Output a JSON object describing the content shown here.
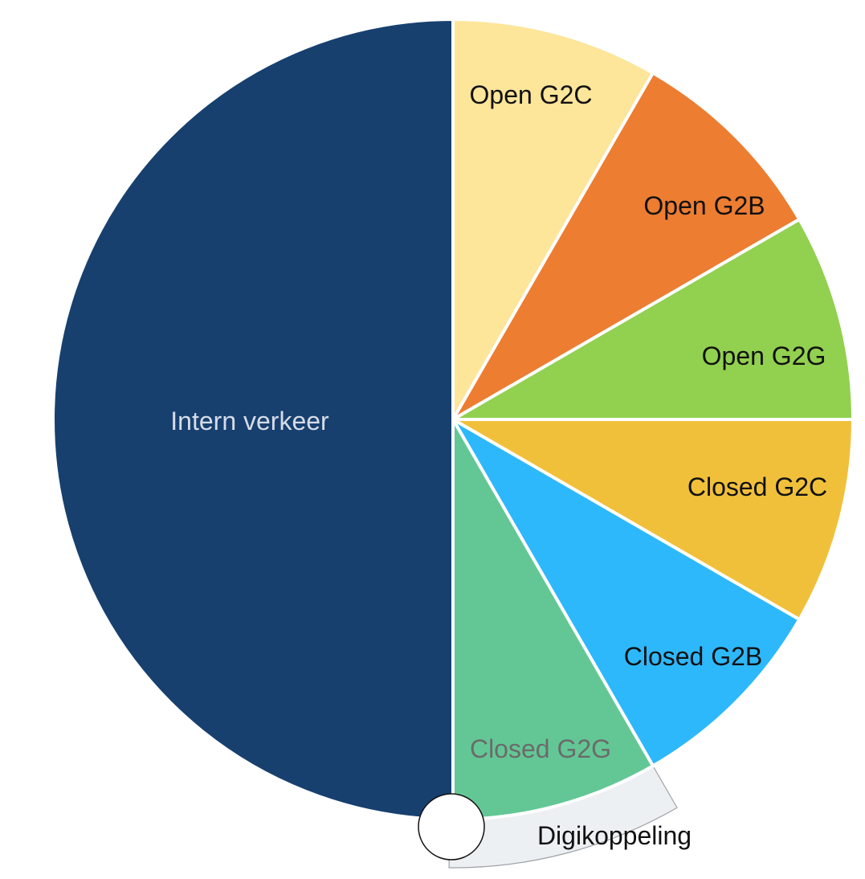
{
  "chart_data": {
    "type": "pie",
    "title": "",
    "start_angle_deg": 0,
    "direction": "clockwise",
    "slices": [
      {
        "label": "Open G2C",
        "value": 1,
        "color": "#FDE59A",
        "label_color": "#111111"
      },
      {
        "label": "Open G2B",
        "value": 1,
        "color": "#ED7D31",
        "label_color": "#111111"
      },
      {
        "label": "Open G2G",
        "value": 1,
        "color": "#92D050",
        "label_color": "#111111"
      },
      {
        "label": "Closed G2C",
        "value": 1,
        "color": "#F1C03A",
        "label_color": "#111111"
      },
      {
        "label": "Closed G2B",
        "value": 1,
        "color": "#2EB8FC",
        "label_color": "#111111"
      },
      {
        "label": "Closed G2G",
        "value": 1,
        "color": "#63C795",
        "label_color": "#6B6B6B"
      },
      {
        "label": "Intern verkeer",
        "value": 6,
        "color": "#17406F",
        "label_color": "#D6DCE8"
      }
    ],
    "annotation": {
      "label": "Digikoppeling",
      "color": "#EDF0F3",
      "label_color": "#111111"
    }
  }
}
